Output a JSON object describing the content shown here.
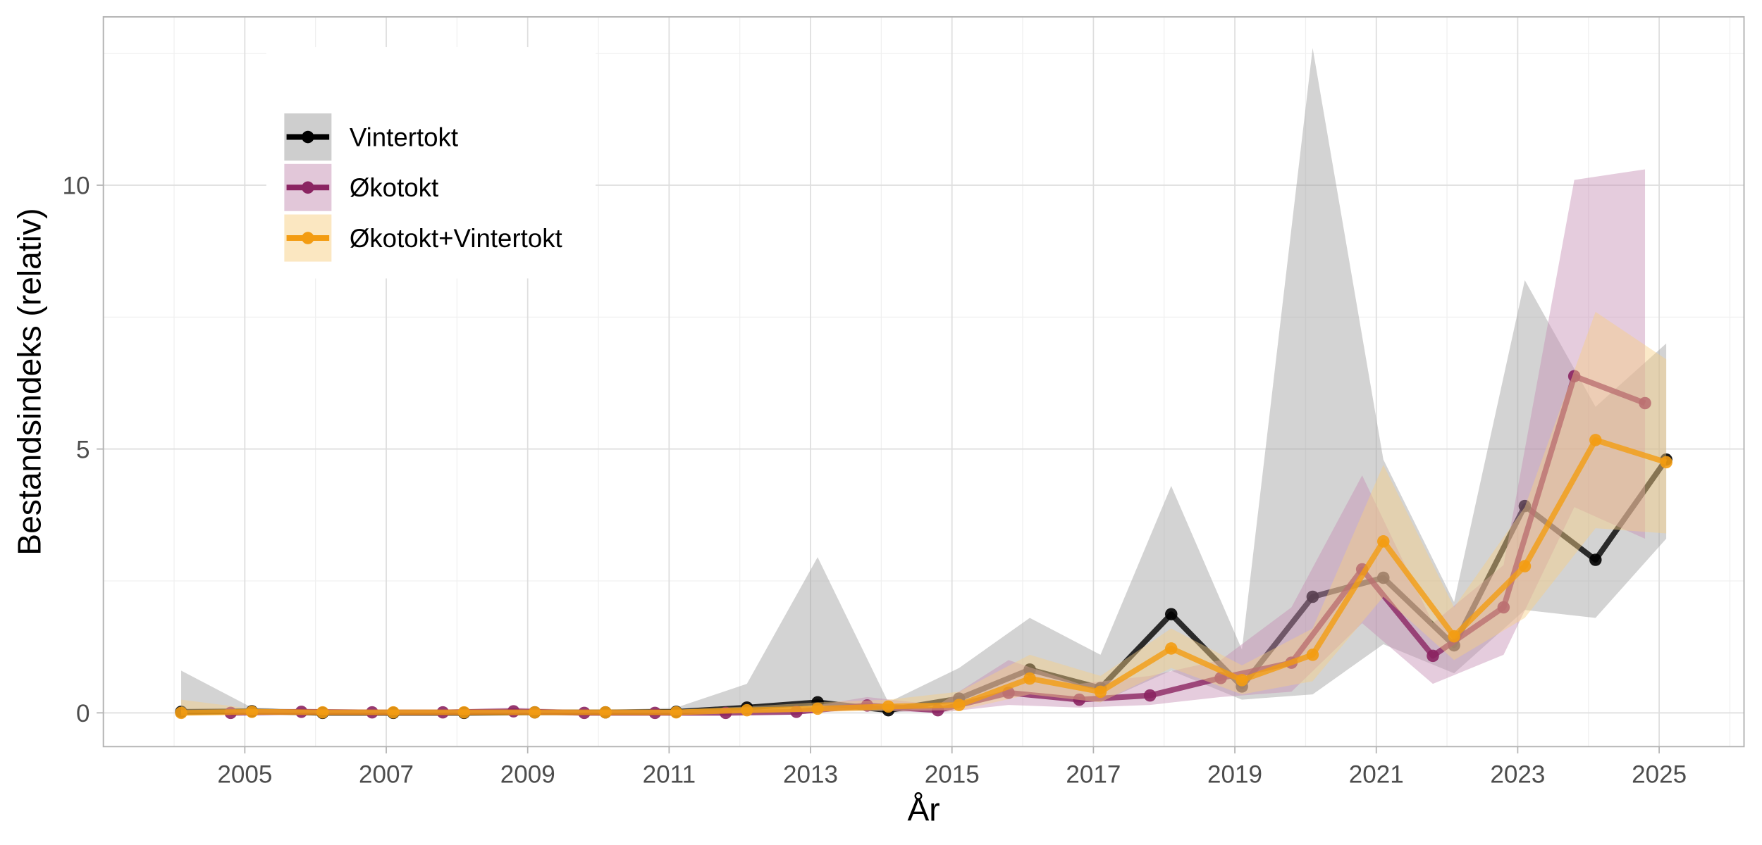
{
  "chart_data": {
    "type": "line",
    "x_label": "År",
    "y_label": "Bestandsindeks (relativ)",
    "xlim": [
      2003,
      2026.2
    ],
    "ylim": [
      -0.64,
      13.19
    ],
    "xticks": [
      2005,
      2007,
      2009,
      2011,
      2013,
      2015,
      2017,
      2019,
      2021,
      2023,
      2025
    ],
    "yticks": [
      0,
      5,
      10
    ],
    "grid": true,
    "legend": "top-left",
    "series": [
      {
        "name": "Vintertokt",
        "color": "#000000",
        "band_color": "#9e9e9e",
        "x": [
          2004.1,
          2005.1,
          2006.1,
          2007.1,
          2008.1,
          2009.1,
          2010.1,
          2011.1,
          2012.1,
          2013.1,
          2014.1,
          2015.1,
          2016.1,
          2017.1,
          2018.1,
          2019.1,
          2020.1,
          2021.1,
          2022.1,
          2023.1,
          2024.1,
          2025.1
        ],
        "values": [
          0.02,
          0.03,
          0.0,
          0.0,
          0.0,
          0.01,
          0.01,
          0.02,
          0.1,
          0.2,
          0.05,
          0.27,
          0.82,
          0.47,
          1.87,
          0.5,
          2.2,
          2.56,
          1.28,
          3.92,
          2.9,
          4.8
        ],
        "lower": [
          0.0,
          0.0,
          0.0,
          0.0,
          0.0,
          0.0,
          0.0,
          0.0,
          0.0,
          0.1,
          0.0,
          0.1,
          0.4,
          0.2,
          0.8,
          0.25,
          0.35,
          1.3,
          0.75,
          1.95,
          1.8,
          3.3
        ],
        "upper": [
          0.8,
          0.1,
          0.05,
          0.05,
          0.05,
          0.05,
          0.05,
          0.1,
          0.55,
          2.95,
          0.2,
          0.85,
          1.8,
          1.1,
          4.3,
          1.2,
          12.6,
          4.8,
          2.1,
          8.2,
          5.8,
          7.0
        ]
      },
      {
        "name": "Økotokt",
        "color": "#8b2462",
        "band_color": "#c58fb4",
        "x": [
          2004.8,
          2005.8,
          2006.8,
          2007.8,
          2008.8,
          2009.8,
          2010.8,
          2011.8,
          2012.8,
          2013.8,
          2014.8,
          2015.8,
          2016.8,
          2017.8,
          2018.8,
          2019.8,
          2020.8,
          2021.8,
          2022.8,
          2023.8,
          2024.8
        ],
        "values": [
          0.0,
          0.02,
          0.01,
          0.01,
          0.03,
          0.0,
          0.0,
          0.0,
          0.02,
          0.14,
          0.05,
          0.38,
          0.25,
          0.33,
          0.66,
          0.95,
          2.72,
          1.08,
          2.0,
          6.38,
          5.87
        ],
        "lower": [
          0.0,
          0.0,
          0.0,
          0.0,
          0.0,
          0.0,
          0.0,
          0.0,
          0.0,
          0.05,
          0.0,
          0.15,
          0.1,
          0.15,
          0.3,
          0.4,
          1.7,
          0.55,
          1.1,
          3.9,
          3.3
        ],
        "upper": [
          0.05,
          0.08,
          0.06,
          0.06,
          0.1,
          0.05,
          0.05,
          0.05,
          0.08,
          0.3,
          0.15,
          1.0,
          0.55,
          0.7,
          1.0,
          2.0,
          4.5,
          1.7,
          2.8,
          10.1,
          10.3
        ]
      },
      {
        "name": "Økotokt+Vintertokt",
        "color": "#f39c12",
        "band_color": "#f7cf84",
        "x": [
          2004.1,
          2005.1,
          2006.1,
          2007.1,
          2008.1,
          2009.1,
          2010.1,
          2011.1,
          2012.1,
          2013.1,
          2014.1,
          2015.1,
          2016.1,
          2017.1,
          2018.1,
          2019.1,
          2020.1,
          2021.1,
          2022.1,
          2023.1,
          2024.1,
          2025.1
        ],
        "values": [
          0.0,
          0.02,
          0.01,
          0.01,
          0.01,
          0.01,
          0.01,
          0.01,
          0.05,
          0.08,
          0.12,
          0.15,
          0.65,
          0.4,
          1.22,
          0.62,
          1.1,
          3.25,
          1.45,
          2.78,
          5.17,
          4.75
        ],
        "lower": [
          0.0,
          0.0,
          0.0,
          0.0,
          0.0,
          0.0,
          0.0,
          0.0,
          0.0,
          0.02,
          0.04,
          0.05,
          0.35,
          0.2,
          0.85,
          0.35,
          0.6,
          2.2,
          1.0,
          1.8,
          3.5,
          3.4
        ],
        "upper": [
          0.25,
          0.08,
          0.05,
          0.05,
          0.05,
          0.05,
          0.05,
          0.06,
          0.12,
          0.2,
          0.25,
          0.4,
          1.1,
          0.7,
          1.6,
          0.9,
          1.6,
          4.7,
          2.0,
          3.9,
          7.6,
          6.7
        ]
      }
    ]
  }
}
